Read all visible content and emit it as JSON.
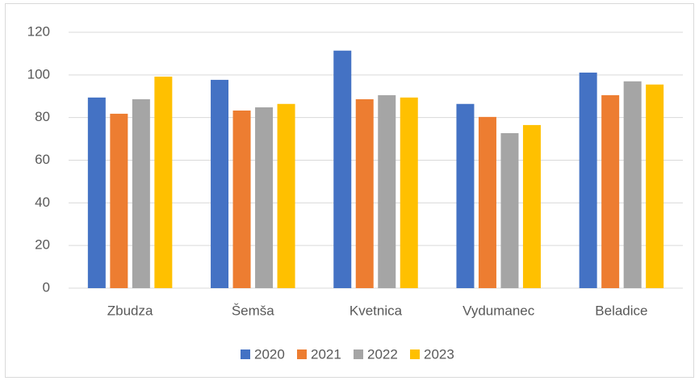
{
  "chart_data": {
    "type": "bar",
    "categories": [
      "Zbudza",
      "Šemša",
      "Kvetnica",
      "Vydumanec",
      "Beladice"
    ],
    "series": [
      {
        "name": "2020",
        "color": "#4472c4",
        "values": [
          89.4,
          97.7,
          111.4,
          86.4,
          101.1
        ]
      },
      {
        "name": "2021",
        "color": "#ed7d31",
        "values": [
          81.8,
          83.3,
          88.6,
          80.3,
          90.5
        ]
      },
      {
        "name": "2022",
        "color": "#a5a5a5",
        "values": [
          88.6,
          84.8,
          90.5,
          72.7,
          97.0
        ]
      },
      {
        "name": "2023",
        "color": "#ffc000",
        "values": [
          99.2,
          86.4,
          89.4,
          76.5,
          95.5
        ]
      }
    ],
    "ylim": [
      0,
      120
    ],
    "yticks": [
      0,
      20,
      40,
      60,
      80,
      100,
      120
    ],
    "grid": true,
    "legend": "bottom"
  }
}
